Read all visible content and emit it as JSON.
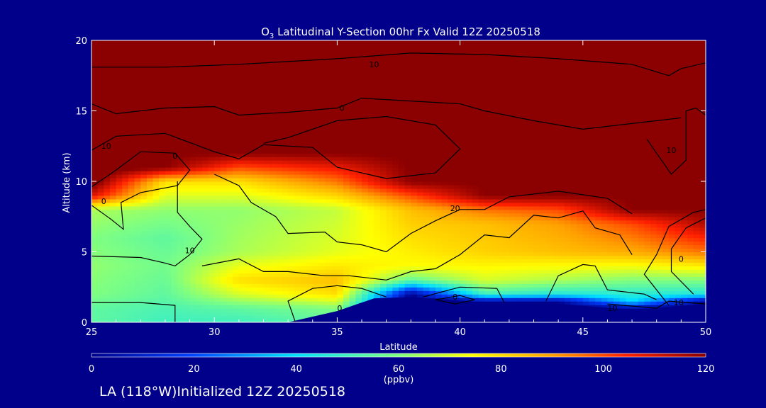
{
  "chart_data": {
    "type": "heatmap",
    "title_main": "O",
    "title_sub": "3",
    "title_rest": " Latitudinal Y-Section 00hr  Fx Valid 12Z 20250518",
    "xlabel": "Latitude",
    "ylabel": "Altitude (km)",
    "xlim": [
      25,
      50
    ],
    "ylim": [
      0,
      20
    ],
    "x_ticks": [
      "25",
      "30",
      "35",
      "40",
      "45",
      "50"
    ],
    "y_ticks": [
      "0",
      "5",
      "10",
      "15",
      "20"
    ],
    "colorbar": {
      "range": [
        0,
        120
      ],
      "ticks": [
        "0",
        "20",
        "40",
        "60",
        "80",
        "100",
        "120"
      ],
      "unit": "(ppbv)"
    },
    "terrain_top_km": [
      [
        25,
        0
      ],
      [
        33,
        0
      ],
      [
        35,
        0.8
      ],
      [
        36.5,
        1.7
      ],
      [
        38,
        1.8
      ],
      [
        41,
        1.4
      ],
      [
        44,
        1.3
      ],
      [
        47,
        0.9
      ],
      [
        50,
        1.3
      ]
    ],
    "ozone_profile_points": [
      {
        "lat": 25,
        "alt_km": [
          0,
          1,
          2,
          4,
          6,
          8,
          9,
          10,
          20
        ],
        "ppbv": [
          55,
          55,
          60,
          62,
          60,
          65,
          110,
          125,
          125
        ]
      },
      {
        "lat": 28,
        "alt_km": [
          0,
          1,
          2,
          4,
          6,
          8,
          10,
          11,
          20
        ],
        "ppbv": [
          50,
          52,
          55,
          58,
          55,
          62,
          80,
          120,
          125
        ]
      },
      {
        "lat": 31,
        "alt_km": [
          0,
          1,
          2,
          3,
          5,
          8,
          10,
          12,
          20
        ],
        "ppbv": [
          50,
          55,
          70,
          80,
          65,
          62,
          80,
          120,
          125
        ]
      },
      {
        "lat": 35,
        "alt_km": [
          0,
          1,
          2,
          3,
          5,
          8,
          10,
          12,
          20
        ],
        "ppbv": [
          55,
          60,
          80,
          85,
          72,
          68,
          95,
          120,
          125
        ]
      },
      {
        "lat": 38,
        "alt_km": [
          0,
          2,
          3,
          4,
          6,
          8,
          9,
          10,
          20
        ],
        "ppbv": [
          0,
          0,
          55,
          75,
          80,
          85,
          100,
          120,
          125
        ]
      },
      {
        "lat": 41,
        "alt_km": [
          0,
          1.5,
          2,
          3,
          5,
          7,
          8,
          9,
          20
        ],
        "ppbv": [
          0,
          0,
          50,
          70,
          82,
          85,
          95,
          120,
          125
        ]
      },
      {
        "lat": 44,
        "alt_km": [
          0,
          1.5,
          2,
          3,
          5,
          7,
          8,
          9,
          20
        ],
        "ppbv": [
          0,
          0,
          45,
          65,
          85,
          90,
          100,
          120,
          125
        ]
      },
      {
        "lat": 47,
        "alt_km": [
          0,
          1,
          1.5,
          3,
          5,
          7,
          8,
          20
        ],
        "ppbv": [
          0,
          0,
          40,
          60,
          88,
          100,
          120,
          125
        ]
      },
      {
        "lat": 50,
        "alt_km": [
          0,
          1.5,
          2,
          3,
          5,
          7,
          8,
          20
        ],
        "ppbv": [
          0,
          0,
          45,
          60,
          95,
          115,
          120,
          125
        ]
      }
    ],
    "contour_labels": [
      {
        "lat": 35.2,
        "alt": 15.0,
        "text": "0"
      },
      {
        "lat": 36.5,
        "alt": 18.1,
        "text": "10"
      },
      {
        "lat": 25.6,
        "alt": 12.3,
        "text": "10"
      },
      {
        "lat": 28.4,
        "alt": 11.6,
        "text": "0"
      },
      {
        "lat": 25.5,
        "alt": 8.4,
        "text": "0"
      },
      {
        "lat": 29.0,
        "alt": 4.9,
        "text": "10"
      },
      {
        "lat": 39.8,
        "alt": 7.9,
        "text": "20"
      },
      {
        "lat": 39.8,
        "alt": 1.6,
        "text": "0"
      },
      {
        "lat": 35.1,
        "alt": 0.8,
        "text": "0"
      },
      {
        "lat": 46.2,
        "alt": 0.8,
        "text": "10"
      },
      {
        "lat": 48.9,
        "alt": 1.2,
        "text": "10"
      },
      {
        "lat": 49.0,
        "alt": 4.3,
        "text": "0"
      },
      {
        "lat": 48.6,
        "alt": 12.0,
        "text": "10"
      }
    ],
    "contour_lines": [
      [
        [
          25,
          18.1
        ],
        [
          28,
          18.1
        ],
        [
          31,
          18.3
        ],
        [
          35,
          18.7
        ],
        [
          38,
          19.1
        ],
        [
          41,
          19.0
        ],
        [
          44,
          18.7
        ],
        [
          47,
          18.3
        ],
        [
          48.5,
          17.5
        ],
        [
          49,
          18
        ],
        [
          50,
          18.4
        ]
      ],
      [
        [
          25,
          15.5
        ],
        [
          26,
          14.8
        ],
        [
          28,
          15.2
        ],
        [
          30,
          15.3
        ],
        [
          31,
          14.7
        ],
        [
          33,
          14.9
        ],
        [
          35,
          15.2
        ],
        [
          36,
          15.9
        ],
        [
          38,
          15.7
        ],
        [
          40,
          15.5
        ],
        [
          41,
          15.0
        ],
        [
          43,
          14.3
        ],
        [
          45,
          13.7
        ],
        [
          47,
          14.1
        ],
        [
          49,
          14.5
        ]
      ],
      [
        [
          25,
          12.2
        ],
        [
          26,
          13.2
        ],
        [
          28,
          13.4
        ],
        [
          30,
          12.1
        ],
        [
          31,
          11.6
        ],
        [
          32,
          12.6
        ],
        [
          34,
          12.4
        ],
        [
          35,
          11.0
        ],
        [
          37,
          10.2
        ],
        [
          39,
          10.6
        ],
        [
          40,
          12.3
        ],
        [
          39,
          14.0
        ],
        [
          37,
          14.6
        ],
        [
          35,
          14.3
        ],
        [
          33,
          13.1
        ],
        [
          32,
          12.7
        ]
      ],
      [
        [
          25,
          9.6
        ],
        [
          26,
          10.8
        ],
        [
          27,
          12.1
        ],
        [
          28.4,
          12.0
        ],
        [
          29,
          10.8
        ],
        [
          28.5,
          9.7
        ],
        [
          27,
          9.2
        ],
        [
          26.2,
          8.5
        ],
        [
          26.3,
          6.6
        ],
        [
          25.8,
          7.3
        ],
        [
          25,
          8.3
        ]
      ],
      [
        [
          25,
          4.7
        ],
        [
          27,
          4.6
        ],
        [
          28,
          4.2
        ],
        [
          28.4,
          4.0
        ],
        [
          29,
          4.8
        ],
        [
          29.5,
          5.9
        ],
        [
          29,
          6.8
        ],
        [
          28.5,
          7.8
        ],
        [
          28.5,
          10.0
        ]
      ],
      [
        [
          29.5,
          4.0
        ],
        [
          31,
          4.5
        ],
        [
          32,
          3.6
        ],
        [
          33,
          3.6
        ],
        [
          34.5,
          3.3
        ],
        [
          35.5,
          3.3
        ],
        [
          37,
          3.0
        ],
        [
          38,
          3.6
        ],
        [
          39,
          3.8
        ],
        [
          40,
          4.8
        ],
        [
          41,
          6.2
        ],
        [
          42,
          6.0
        ],
        [
          43,
          7.6
        ],
        [
          44,
          7.4
        ],
        [
          45,
          7.9
        ],
        [
          45.5,
          6.7
        ],
        [
          46.5,
          6.2
        ],
        [
          47,
          4.8
        ]
      ],
      [
        [
          30,
          10.5
        ],
        [
          31,
          9.7
        ],
        [
          31.5,
          8.5
        ],
        [
          32.5,
          7.5
        ],
        [
          33,
          6.3
        ],
        [
          34.5,
          6.4
        ],
        [
          35,
          5.7
        ],
        [
          36,
          5.5
        ],
        [
          37,
          5.0
        ],
        [
          38,
          6.3
        ],
        [
          39,
          7.2
        ],
        [
          40,
          8.0
        ],
        [
          41,
          8.0
        ],
        [
          42,
          8.9
        ],
        [
          44,
          9.3
        ],
        [
          46,
          8.8
        ],
        [
          47,
          7.7
        ]
      ],
      [
        [
          33.3,
          0
        ],
        [
          33,
          1.5
        ],
        [
          34,
          2.4
        ],
        [
          35,
          2.6
        ],
        [
          36,
          2.4
        ],
        [
          37,
          1.8
        ]
      ],
      [
        [
          38.5,
          1.8
        ],
        [
          40,
          2.5
        ],
        [
          41.5,
          2.4
        ],
        [
          41.8,
          1.4
        ]
      ],
      [
        [
          39,
          1.6
        ],
        [
          40,
          1.9
        ],
        [
          40.6,
          1.6
        ],
        [
          39.8,
          1.3
        ],
        [
          39,
          1.6
        ]
      ],
      [
        [
          43.5,
          1.5
        ],
        [
          44,
          3.3
        ],
        [
          45,
          4.1
        ],
        [
          45.5,
          4.0
        ],
        [
          46,
          2.3
        ],
        [
          47.5,
          2.0
        ],
        [
          48,
          1.6
        ]
      ],
      [
        [
          25,
          1.4
        ],
        [
          27,
          1.4
        ],
        [
          28.4,
          1.2
        ],
        [
          28.4,
          0
        ]
      ],
      [
        [
          46,
          1.3
        ],
        [
          48,
          1.0
        ],
        [
          48.5,
          1.5
        ],
        [
          50,
          1.3
        ]
      ],
      [
        [
          48.5,
          1.2
        ],
        [
          47.5,
          3.4
        ],
        [
          48,
          4.8
        ],
        [
          48.5,
          6.8
        ],
        [
          49.5,
          7.8
        ],
        [
          50,
          8.0
        ]
      ],
      [
        [
          49.5,
          2.0
        ],
        [
          48.6,
          3.6
        ],
        [
          48.6,
          5.2
        ],
        [
          49.2,
          6.7
        ],
        [
          50,
          7.4
        ]
      ],
      [
        [
          47.6,
          13.0
        ],
        [
          48,
          12.0
        ],
        [
          48.6,
          10.5
        ],
        [
          49.2,
          11.5
        ],
        [
          49.2,
          15.0
        ],
        [
          49.6,
          15.2
        ],
        [
          50,
          14.7
        ]
      ]
    ]
  },
  "footer": {
    "text": "LA (118°W)Initialized 12Z 20250518"
  },
  "colors": {
    "background": "#00008b",
    "contour": "#000000",
    "text": "#ffffff"
  }
}
